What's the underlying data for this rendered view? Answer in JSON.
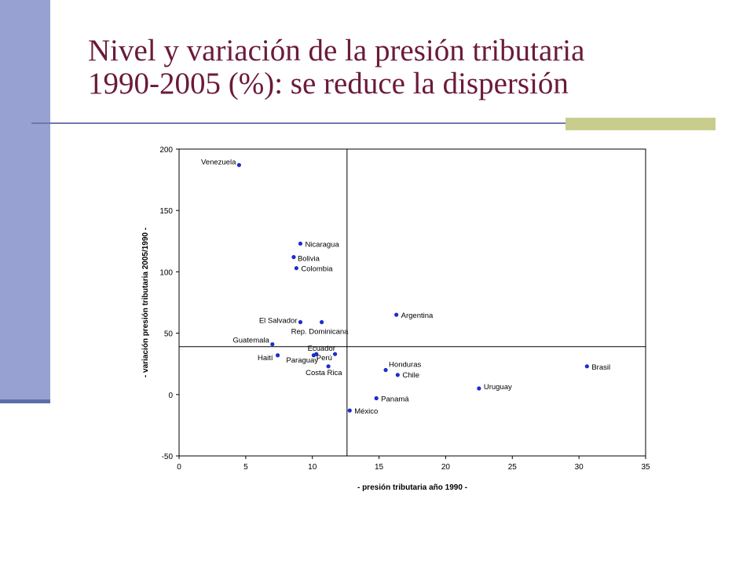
{
  "slide": {
    "title_line1": "Nivel y variación de la presión tributaria",
    "title_line2": "1990-2005 (%): se reduce la dispersión"
  },
  "colors": {
    "sidebar": "#98A2D2",
    "title": "#6B1A3A",
    "divider": "#7078B0",
    "divider_accent": "#C8CC8C",
    "points": "#1A2ECC"
  },
  "chart_data": {
    "type": "scatter",
    "title": "",
    "xlabel": "- presión tributaria año 1990 -",
    "ylabel": "- variación presión tributaria 2005/1990 -",
    "xlim": [
      0,
      35
    ],
    "ylim": [
      -50,
      200
    ],
    "xticks": [
      0,
      5,
      10,
      15,
      20,
      25,
      30,
      35
    ],
    "yticks": [
      -50,
      0,
      50,
      100,
      150,
      200
    ],
    "grid": false,
    "legend": "none",
    "reference_lines": {
      "x": 12.6,
      "y": 39
    },
    "points": [
      {
        "label": "Venezuela",
        "x": 4.5,
        "y": 187
      },
      {
        "label": "Nicaragua",
        "x": 9.1,
        "y": 123
      },
      {
        "label": "Bolivia",
        "x": 8.6,
        "y": 112
      },
      {
        "label": "Colombia",
        "x": 8.8,
        "y": 103
      },
      {
        "label": "El Salvador",
        "x": 9.1,
        "y": 59
      },
      {
        "label": "Rep. Dominicana",
        "x": 10.7,
        "y": 59
      },
      {
        "label": "Argentina",
        "x": 16.3,
        "y": 65
      },
      {
        "label": "Guatemala",
        "x": 7.0,
        "y": 41
      },
      {
        "label": "Haití",
        "x": 7.4,
        "y": 32
      },
      {
        "label": "Ecuador",
        "x": 11.7,
        "y": 33
      },
      {
        "label": "Paraguay",
        "x": 10.1,
        "y": 32
      },
      {
        "label": "Perú",
        "x": 10.3,
        "y": 33
      },
      {
        "label": "Costa Rica",
        "x": 11.2,
        "y": 23
      },
      {
        "label": "Honduras",
        "x": 15.5,
        "y": 20
      },
      {
        "label": "Chile",
        "x": 16.4,
        "y": 16
      },
      {
        "label": "Brasil",
        "x": 30.6,
        "y": 23
      },
      {
        "label": "Uruguay",
        "x": 22.5,
        "y": 5
      },
      {
        "label": "Panamá",
        "x": 14.8,
        "y": -3
      },
      {
        "label": "México",
        "x": 12.8,
        "y": -13
      }
    ]
  }
}
